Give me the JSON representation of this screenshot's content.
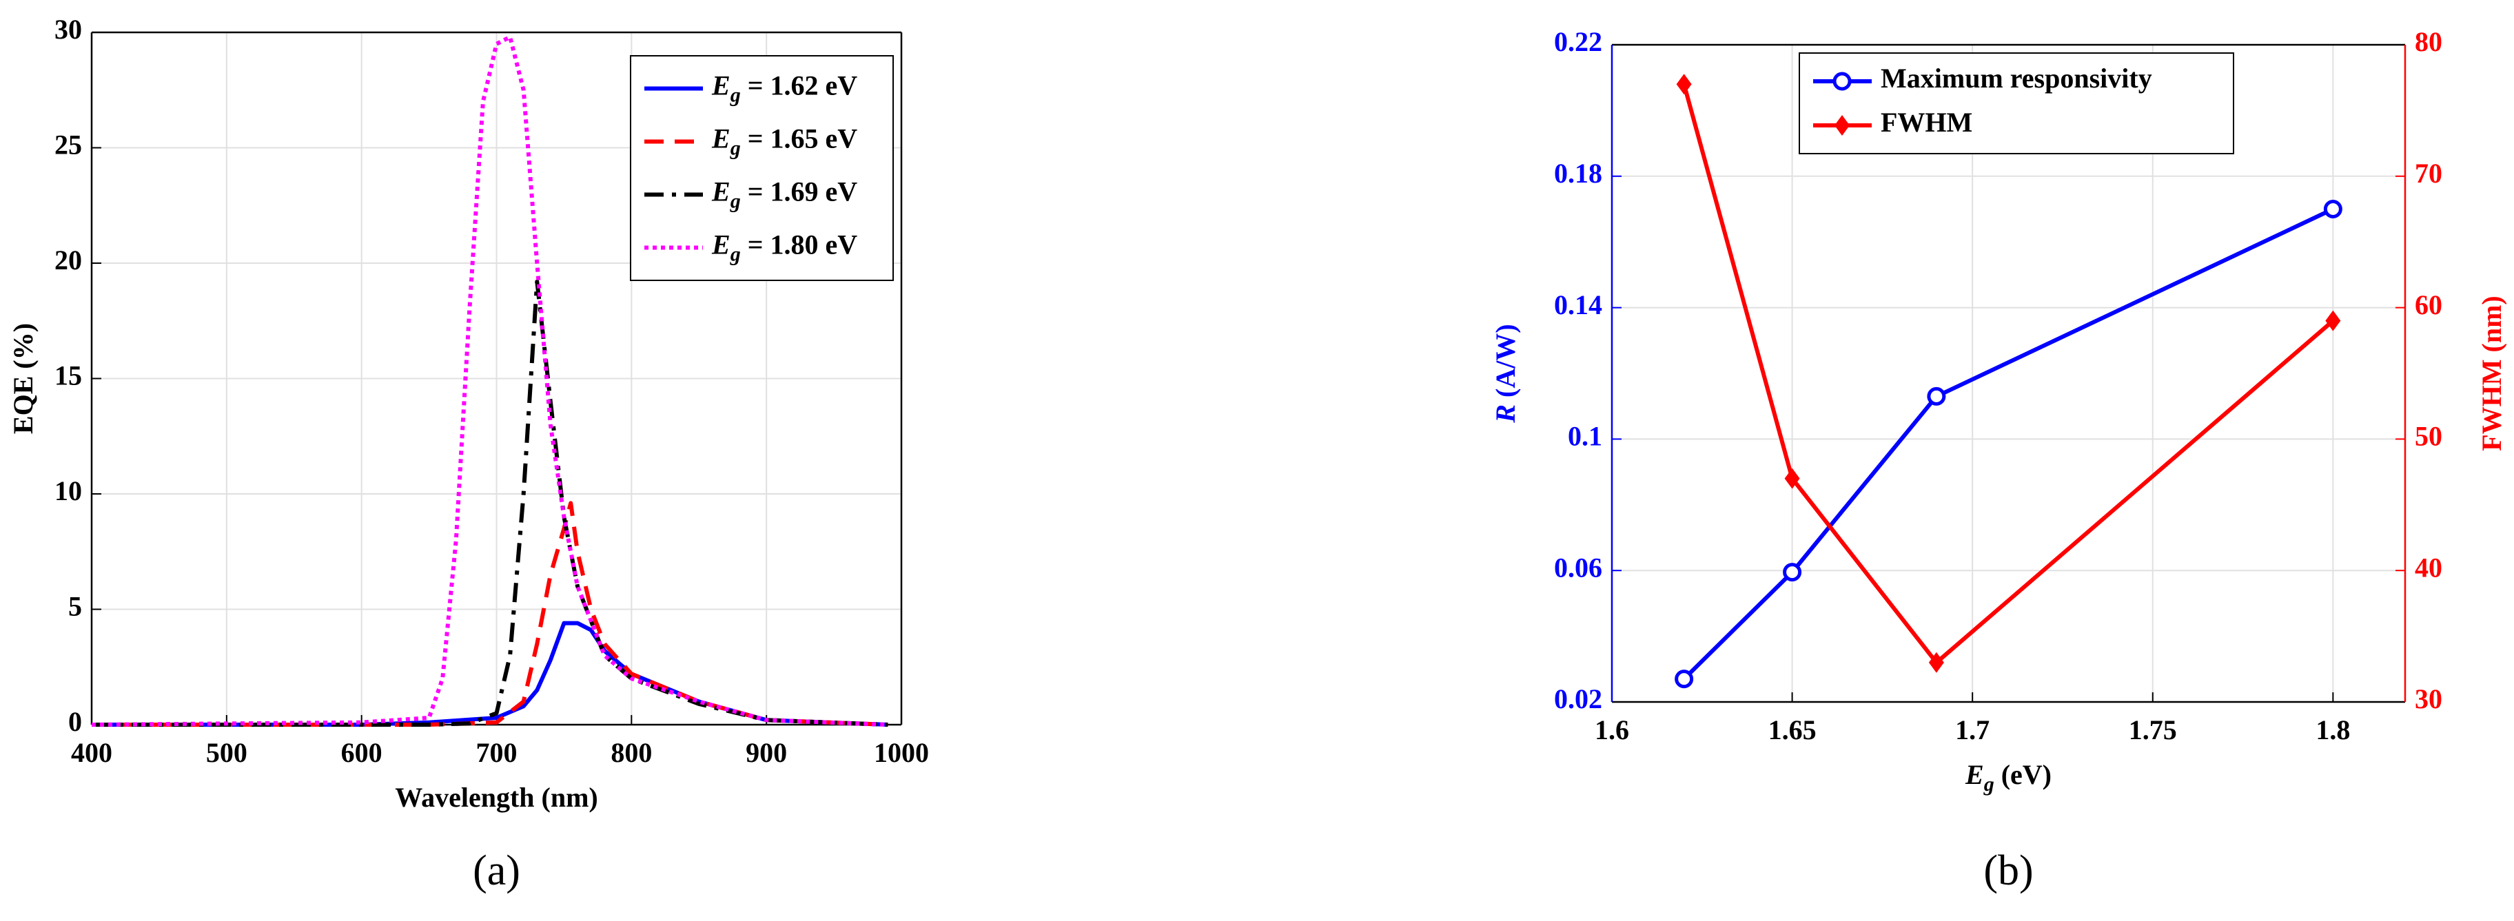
{
  "chart_data": [
    {
      "type": "line",
      "panel_label": "(a)",
      "xlabel": "Wavelength (nm)",
      "ylabel": "EQE (%)",
      "xlim": [
        400,
        1000
      ],
      "xticks": [
        400,
        500,
        600,
        700,
        800,
        900,
        1000
      ],
      "ylim": [
        0,
        30
      ],
      "yticks": [
        0,
        5,
        10,
        15,
        20,
        25,
        30
      ],
      "grid": true,
      "legend": "upper right",
      "series": [
        {
          "name": "Eg = 1.62 eV",
          "color": "#0000ff",
          "linestyle": "solid",
          "x": [
            400,
            600,
            650,
            700,
            720,
            730,
            740,
            750,
            760,
            770,
            780,
            800,
            850,
            900,
            990
          ],
          "values": [
            0,
            0,
            0.1,
            0.3,
            0.8,
            1.5,
            2.8,
            4.4,
            4.4,
            4.1,
            3.2,
            2.2,
            1,
            0.2,
            0
          ]
        },
        {
          "name": "Eg = 1.65 eV",
          "color": "#ff0000",
          "linestyle": "dashed",
          "x": [
            400,
            650,
            700,
            720,
            730,
            740,
            750,
            755,
            760,
            770,
            780,
            800,
            850,
            900,
            990
          ],
          "values": [
            0,
            0,
            0.1,
            1,
            3.5,
            6.5,
            8.5,
            9.6,
            7.5,
            5,
            3.5,
            2.2,
            1,
            0.2,
            0
          ]
        },
        {
          "name": "Eg = 1.69 eV",
          "color": "#000000",
          "linestyle": "dashdot",
          "x": [
            400,
            650,
            680,
            700,
            710,
            720,
            730,
            740,
            750,
            760,
            770,
            780,
            800,
            850,
            900,
            990
          ],
          "values": [
            0,
            0,
            0.05,
            0.5,
            3,
            10,
            19.2,
            14,
            9,
            6,
            4.5,
            3,
            2,
            0.9,
            0.2,
            0
          ]
        },
        {
          "name": "Eg = 1.80 eV",
          "color": "#ff00ff",
          "linestyle": "dotted",
          "x": [
            400,
            600,
            650,
            660,
            670,
            680,
            690,
            700,
            710,
            720,
            730,
            740,
            750,
            760,
            770,
            780,
            800,
            850,
            900,
            990
          ],
          "values": [
            0,
            0.1,
            0.3,
            2,
            8,
            18,
            27,
            29.5,
            29.8,
            27.5,
            20,
            13,
            9,
            6,
            4.5,
            3,
            2,
            1,
            0.2,
            0
          ]
        }
      ]
    },
    {
      "type": "line",
      "panel_label": "(b)",
      "xlabel": "Eg (eV)",
      "ylabel": "R (A/W)",
      "y2label": "FWHM (nm)",
      "xlim": [
        1.6,
        1.82
      ],
      "xticks": [
        1.6,
        1.65,
        1.7,
        1.75,
        1.8
      ],
      "ylim": [
        0.02,
        0.22
      ],
      "yticks": [
        0.02,
        0.06,
        0.1,
        0.14,
        0.18,
        0.22
      ],
      "ycolor": "#0000ff",
      "y2lim": [
        30,
        80
      ],
      "y2ticks": [
        30,
        40,
        50,
        60,
        70,
        80
      ],
      "y2color": "#ff0000",
      "grid": true,
      "legend": "upper center",
      "series": [
        {
          "name": "Maximum responsivity",
          "color": "#0000ff",
          "linestyle": "solid",
          "marker": "circle",
          "x": [
            1.62,
            1.65,
            1.69,
            1.8
          ],
          "values": [
            0.027,
            0.0595,
            0.113,
            0.17
          ]
        },
        {
          "name": "FWHM",
          "color": "#ff0000",
          "linestyle": "solid",
          "marker": "diamond",
          "axis": "y2",
          "x": [
            1.62,
            1.65,
            1.69,
            1.8
          ],
          "values": [
            77,
            47,
            33,
            59
          ]
        }
      ]
    }
  ]
}
